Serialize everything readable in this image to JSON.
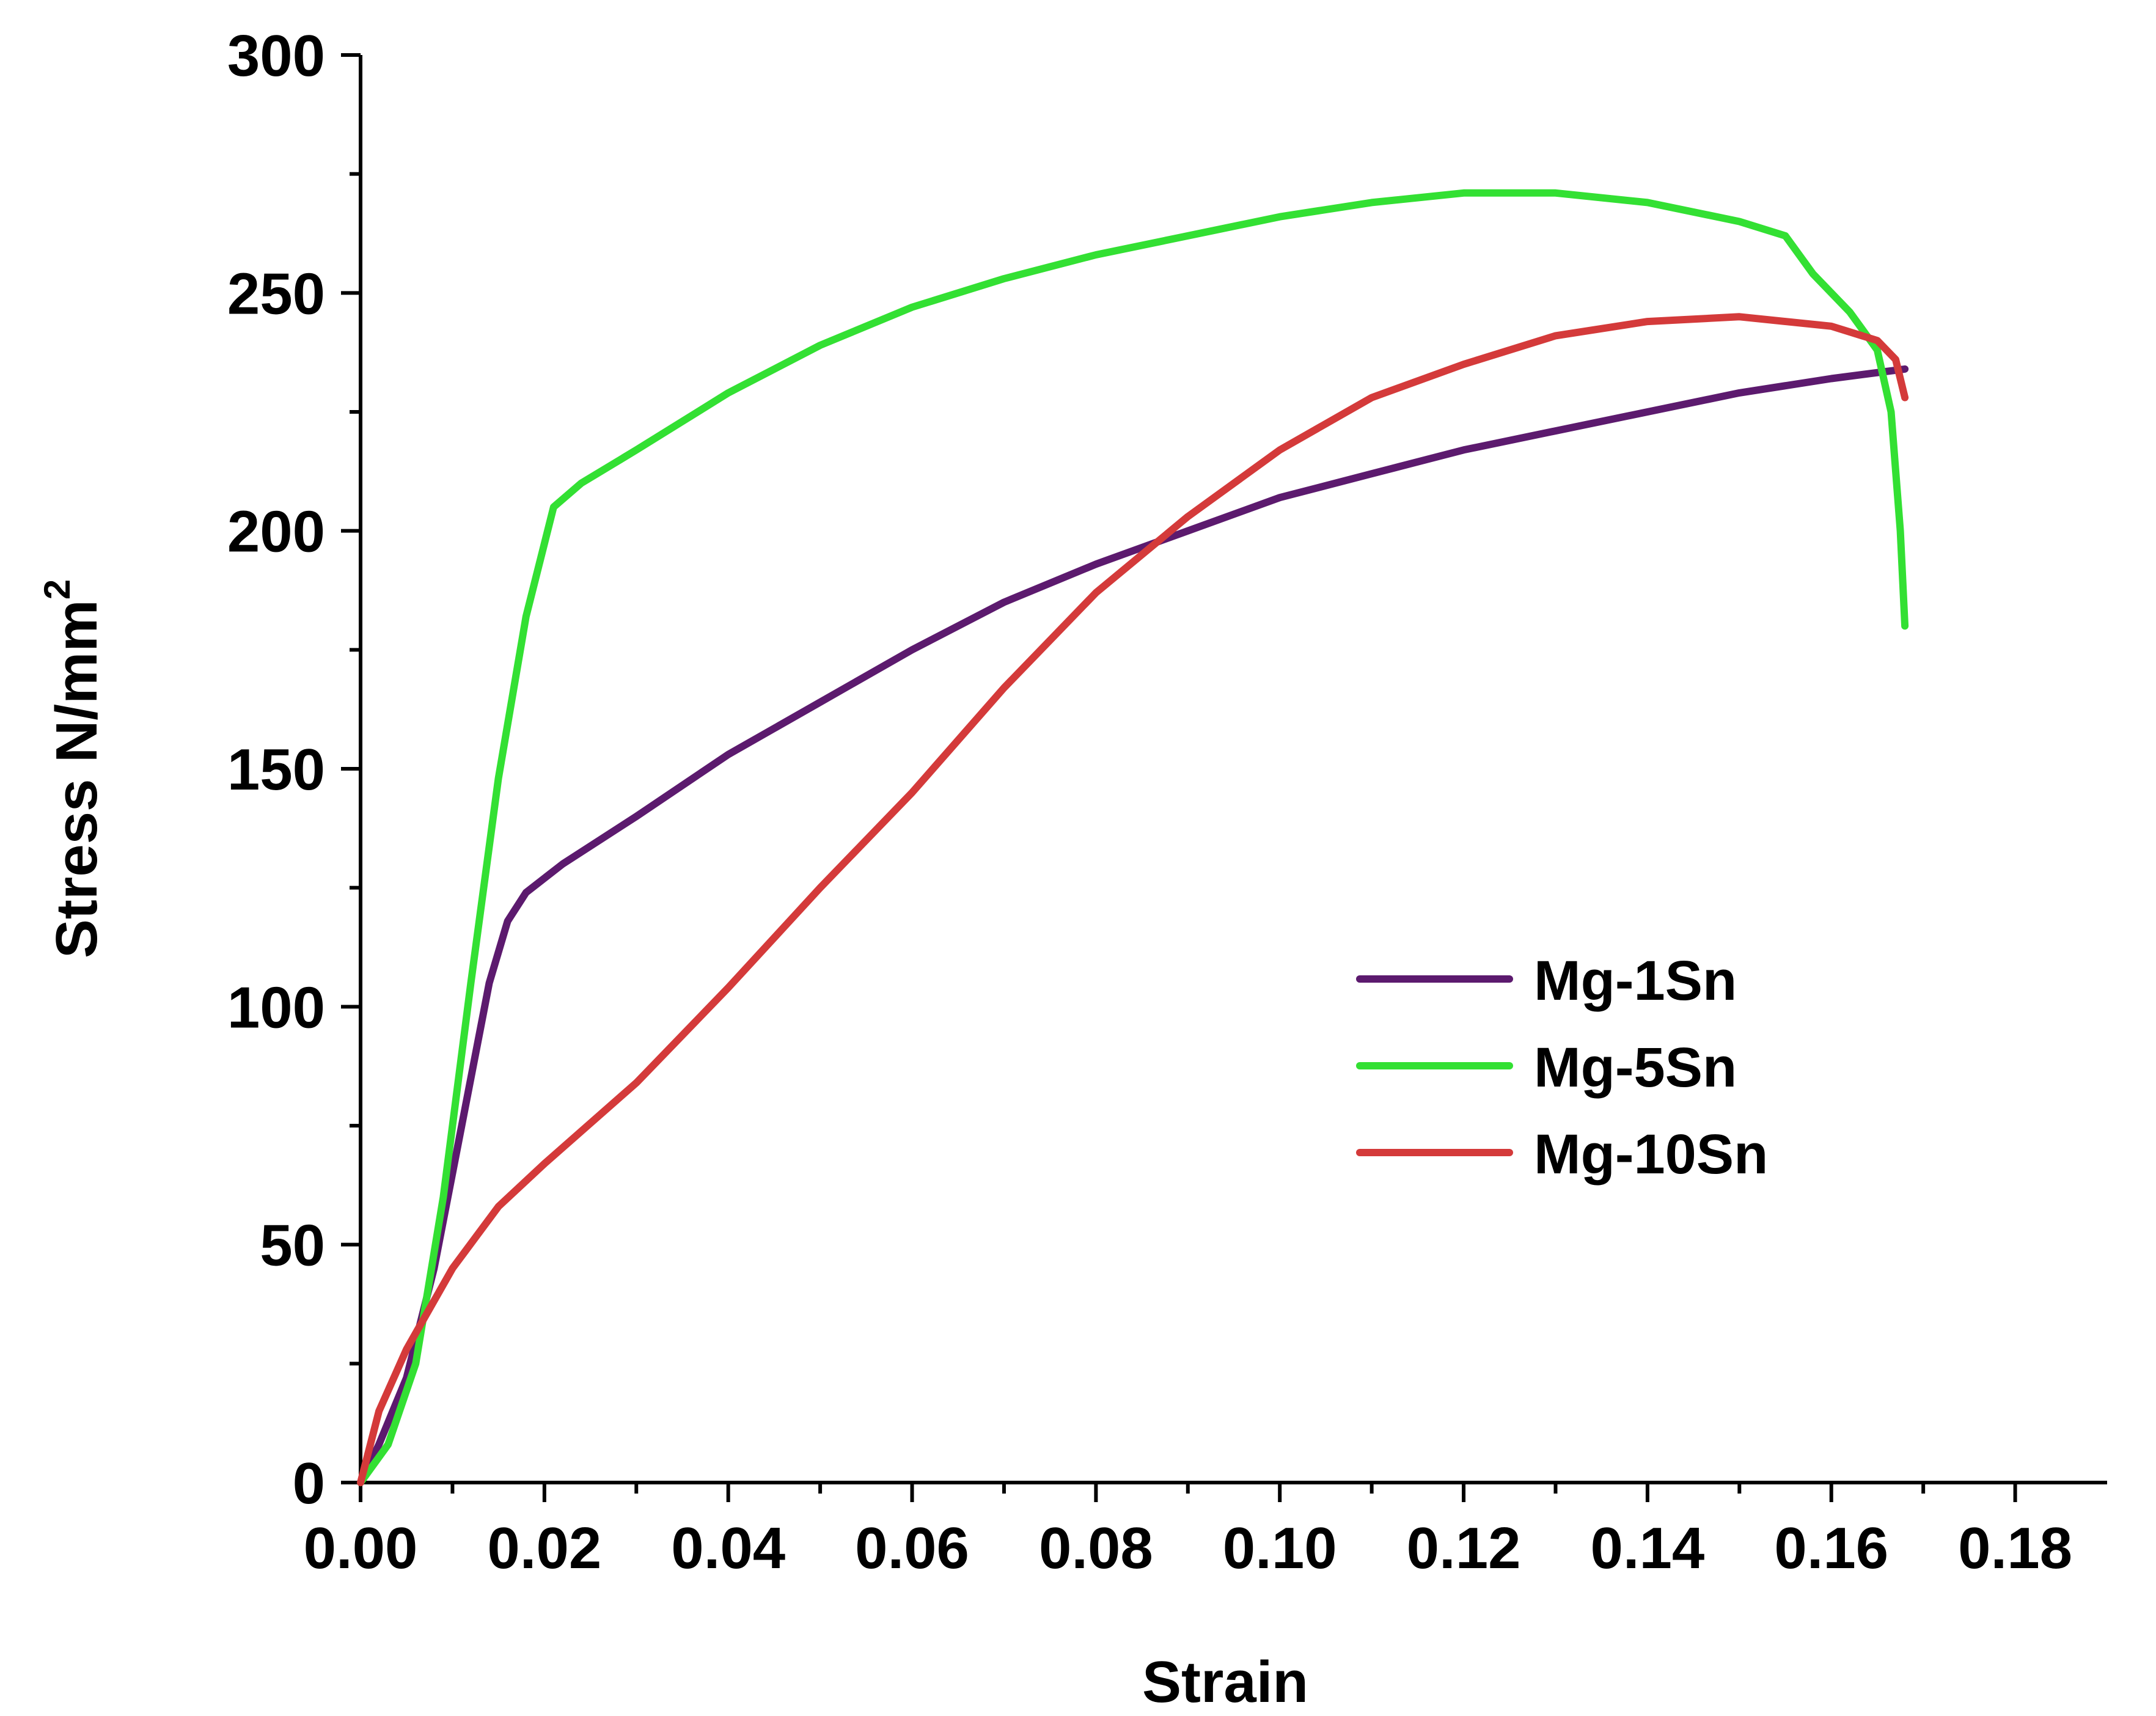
{
  "chart_data": {
    "type": "line",
    "title": "",
    "xlabel": "Strain",
    "ylabel": "Stress N/mm",
    "ylabel_superscript": "2",
    "xlim": [
      0,
      0.19
    ],
    "ylim": [
      0,
      300
    ],
    "x_ticks": [
      "0.00",
      "0.02",
      "0.04",
      "0.06",
      "0.08",
      "0.10",
      "0.12",
      "0.14",
      "0.16",
      "0.18"
    ],
    "x_tick_values": [
      0,
      0.02,
      0.04,
      0.06,
      0.08,
      0.1,
      0.12,
      0.14,
      0.16,
      0.18
    ],
    "y_ticks": [
      "0",
      "50",
      "100",
      "150",
      "200",
      "250",
      "300"
    ],
    "y_tick_values": [
      0,
      50,
      100,
      150,
      200,
      250,
      300
    ],
    "grid": false,
    "legend_position": "center-right",
    "series": [
      {
        "name": "Mg-1Sn",
        "color": "#5c1a6e",
        "points": [
          [
            0,
            0
          ],
          [
            0.002,
            8
          ],
          [
            0.005,
            22
          ],
          [
            0.008,
            45
          ],
          [
            0.011,
            75
          ],
          [
            0.014,
            105
          ],
          [
            0.016,
            118
          ],
          [
            0.018,
            124
          ],
          [
            0.022,
            130
          ],
          [
            0.03,
            140
          ],
          [
            0.04,
            153
          ],
          [
            0.05,
            164
          ],
          [
            0.06,
            175
          ],
          [
            0.07,
            185
          ],
          [
            0.08,
            193
          ],
          [
            0.09,
            200
          ],
          [
            0.1,
            207
          ],
          [
            0.11,
            212
          ],
          [
            0.12,
            217
          ],
          [
            0.13,
            221
          ],
          [
            0.14,
            225
          ],
          [
            0.15,
            229
          ],
          [
            0.16,
            232
          ],
          [
            0.168,
            234
          ]
        ]
      },
      {
        "name": "Mg-5Sn",
        "color": "#33e033",
        "points": [
          [
            0,
            0
          ],
          [
            0.003,
            8
          ],
          [
            0.006,
            25
          ],
          [
            0.009,
            60
          ],
          [
            0.012,
            105
          ],
          [
            0.015,
            148
          ],
          [
            0.018,
            182
          ],
          [
            0.021,
            205
          ],
          [
            0.024,
            210
          ],
          [
            0.03,
            217
          ],
          [
            0.04,
            229
          ],
          [
            0.05,
            239
          ],
          [
            0.06,
            247
          ],
          [
            0.07,
            253
          ],
          [
            0.08,
            258
          ],
          [
            0.09,
            262
          ],
          [
            0.1,
            266
          ],
          [
            0.11,
            269
          ],
          [
            0.12,
            271
          ],
          [
            0.13,
            271
          ],
          [
            0.14,
            269
          ],
          [
            0.15,
            265
          ],
          [
            0.155,
            262
          ],
          [
            0.158,
            254
          ],
          [
            0.162,
            246
          ],
          [
            0.165,
            238
          ],
          [
            0.1665,
            225
          ],
          [
            0.1675,
            200
          ],
          [
            0.168,
            180
          ]
        ]
      },
      {
        "name": "Mg-10Sn",
        "color": "#d43a3a",
        "points": [
          [
            0,
            0
          ],
          [
            0.002,
            15
          ],
          [
            0.005,
            28
          ],
          [
            0.01,
            45
          ],
          [
            0.015,
            58
          ],
          [
            0.02,
            67
          ],
          [
            0.03,
            84
          ],
          [
            0.04,
            104
          ],
          [
            0.05,
            125
          ],
          [
            0.06,
            145
          ],
          [
            0.07,
            167
          ],
          [
            0.08,
            187
          ],
          [
            0.09,
            203
          ],
          [
            0.1,
            217
          ],
          [
            0.11,
            228
          ],
          [
            0.12,
            235
          ],
          [
            0.13,
            241
          ],
          [
            0.14,
            244
          ],
          [
            0.15,
            245
          ],
          [
            0.16,
            243
          ],
          [
            0.165,
            240
          ],
          [
            0.167,
            236
          ],
          [
            0.168,
            228
          ]
        ]
      }
    ]
  }
}
